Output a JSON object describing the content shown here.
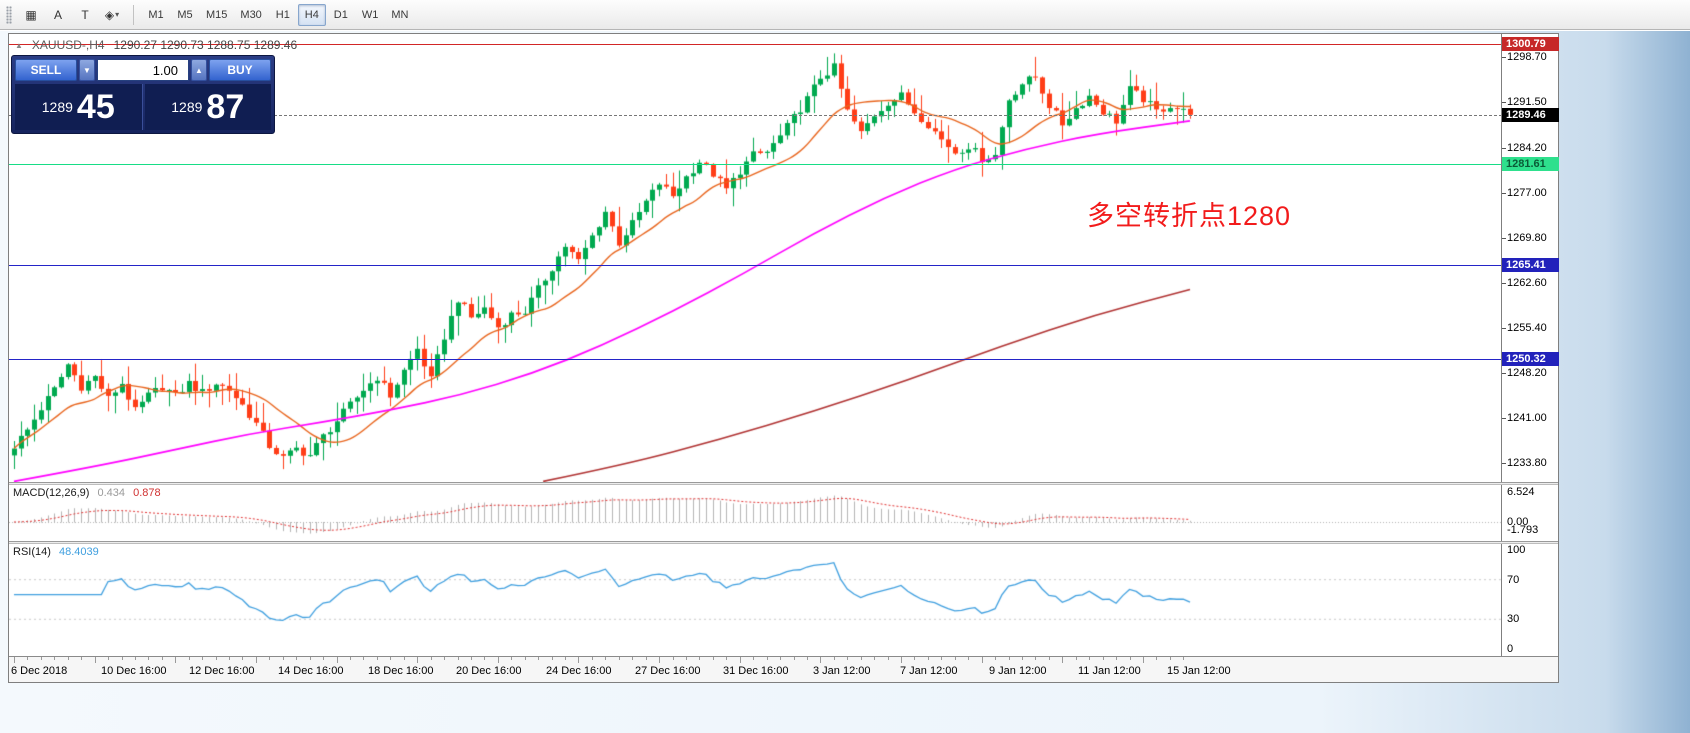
{
  "toolbar": {
    "tools": [
      {
        "name": "grid",
        "glyph": "▦"
      },
      {
        "name": "label-a",
        "glyph": "A"
      },
      {
        "name": "text",
        "glyph": "T"
      },
      {
        "name": "shapes",
        "glyph": "◈",
        "dropdown": "▾"
      }
    ],
    "timeframes": [
      "M1",
      "M5",
      "M15",
      "M30",
      "H1",
      "H4",
      "D1",
      "W1",
      "MN"
    ],
    "active_timeframe": "H4"
  },
  "chart": {
    "title": "XAUUSD-,H4",
    "ohlc": "1290.27 1290.73 1288.75 1289.46",
    "annotation": "多空转折点1280",
    "price_axis": [
      "1298.70",
      "1291.50",
      "1284.20",
      "1277.00",
      "1269.80",
      "1262.60",
      "1255.40",
      "1248.20",
      "1241.00",
      "1233.80"
    ],
    "levels": [
      {
        "price": "1300.79",
        "value": 1300.79,
        "color": "#d22626",
        "badge_bg": "#c62828",
        "badge_fg": "#ffffff"
      },
      {
        "price": "1281.61",
        "value": 1281.61,
        "color": "#17dd86",
        "badge_bg": "#2ee08d",
        "badge_fg": "#0a5a36"
      },
      {
        "price": "1265.41",
        "value": 1265.41,
        "color": "#2424c8",
        "badge_bg": "#2222bb",
        "badge_fg": "#ffffff"
      },
      {
        "price": "1250.32",
        "value": 1250.32,
        "color": "#2424c8",
        "badge_bg": "#2222bb",
        "badge_fg": "#ffffff"
      }
    ],
    "current_price": {
      "label": "1289.46",
      "value": 1289.46,
      "badge_bg": "#000000",
      "badge_fg": "#ffffff"
    }
  },
  "trade_panel": {
    "sell_label": "SELL",
    "buy_label": "BUY",
    "volume": "1.00",
    "sell_price_big": "1289",
    "sell_price_pips": "45",
    "buy_price_big": "1289",
    "buy_price_pips": "87"
  },
  "macd": {
    "label": "MACD(12,26,9)",
    "value_main": "0.434",
    "value_signal": "0.878",
    "axis": [
      "6.524",
      "0.00",
      "-1.793"
    ]
  },
  "rsi": {
    "label": "RSI(14)",
    "value": "48.4039",
    "axis": [
      "100",
      "70",
      "30",
      "0"
    ]
  },
  "time_axis": [
    "6 Dec 2018",
    "10 Dec 16:00",
    "12 Dec 16:00",
    "14 Dec 16:00",
    "18 Dec 16:00",
    "20 Dec 16:00",
    "24 Dec 16:00",
    "27 Dec 16:00",
    "31 Dec 16:00",
    "3 Jan 12:00",
    "7 Jan 12:00",
    "9 Jan 12:00",
    "11 Jan 12:00",
    "15 Jan 12:00"
  ],
  "chart_data": {
    "type": "candlestick",
    "symbol": "XAUUSD-",
    "timeframe": "H4",
    "ohlc_display": {
      "open": 1290.27,
      "high": 1290.73,
      "low": 1288.75,
      "close": 1289.46
    },
    "last_price": 1289.46,
    "price_range": [
      1230.7,
      1302.4
    ],
    "candle_count": 176,
    "close_waypoints": [
      1236.5,
      1239.0,
      1242.5,
      1245.5,
      1249.5,
      1246.0,
      1247.5,
      1244.0,
      1246.5,
      1242.0,
      1244.5,
      1246.0,
      1244.5,
      1246.5,
      1245.0,
      1246.5,
      1245.5,
      1243.0,
      1240.0,
      1236.5,
      1234.5,
      1236.0,
      1235.0,
      1238.0,
      1240.5,
      1243.0,
      1245.5,
      1247.5,
      1244.5,
      1248.5,
      1252.0,
      1247.0,
      1254.0,
      1260.0,
      1257.0,
      1258.5,
      1255.5,
      1257.5,
      1258.0,
      1261.5,
      1265.0,
      1268.5,
      1266.0,
      1270.0,
      1274.0,
      1269.0,
      1272.0,
      1275.5,
      1278.5,
      1276.5,
      1279.5,
      1282.0,
      1280.0,
      1277.5,
      1280.5,
      1283.0,
      1283.5,
      1286.0,
      1289.0,
      1292.0,
      1295.5,
      1297.0,
      1290.0,
      1286.5,
      1289.5,
      1291.5,
      1292.5,
      1290.0,
      1288.0,
      1285.5,
      1283.5,
      1284.5,
      1282.5,
      1283.0,
      1292.0,
      1294.5,
      1295.5,
      1291.0,
      1288.0,
      1290.5,
      1292.5,
      1290.0,
      1288.5,
      1293.5,
      1292.0,
      1290.0,
      1291.0,
      1290.0,
      1289.46
    ],
    "ma_mid_points": [
      [
        0,
        1230.8
      ],
      [
        0.07,
        1233.2
      ],
      [
        0.14,
        1236.0
      ],
      [
        0.2,
        1238.4
      ],
      [
        0.26,
        1240.2
      ],
      [
        0.32,
        1242.2
      ],
      [
        0.38,
        1244.6
      ],
      [
        0.44,
        1248.0
      ],
      [
        0.5,
        1252.5
      ],
      [
        0.56,
        1258.0
      ],
      [
        0.62,
        1264.0
      ],
      [
        0.68,
        1270.5
      ],
      [
        0.74,
        1276.2
      ],
      [
        0.8,
        1280.8
      ],
      [
        0.86,
        1284.0
      ],
      [
        0.92,
        1286.4
      ],
      [
        1.0,
        1288.5
      ]
    ],
    "ma_slow_points": [
      [
        0.45,
        1230.8
      ],
      [
        0.52,
        1233.5
      ],
      [
        0.6,
        1237.5
      ],
      [
        0.68,
        1242.0
      ],
      [
        0.76,
        1247.0
      ],
      [
        0.84,
        1252.5
      ],
      [
        0.92,
        1257.5
      ],
      [
        1.0,
        1261.5
      ]
    ],
    "levels": [
      1300.79,
      1281.61,
      1265.41,
      1250.32
    ],
    "indicators": {
      "macd_params": "12,26,9",
      "macd_main": 0.434,
      "macd_signal": 0.878,
      "rsi_params": "14",
      "rsi_value": 48.4039
    },
    "colors": {
      "up": "#00a94f",
      "down": "#ff3d17",
      "ma_fast": "#e8641c",
      "ma_mid": "#ff00ff",
      "ma_slow": "#b03333",
      "macd_hist": "#b4b4b4",
      "macd_signal": "#e03030",
      "rsi": "#3f9fdf"
    }
  }
}
